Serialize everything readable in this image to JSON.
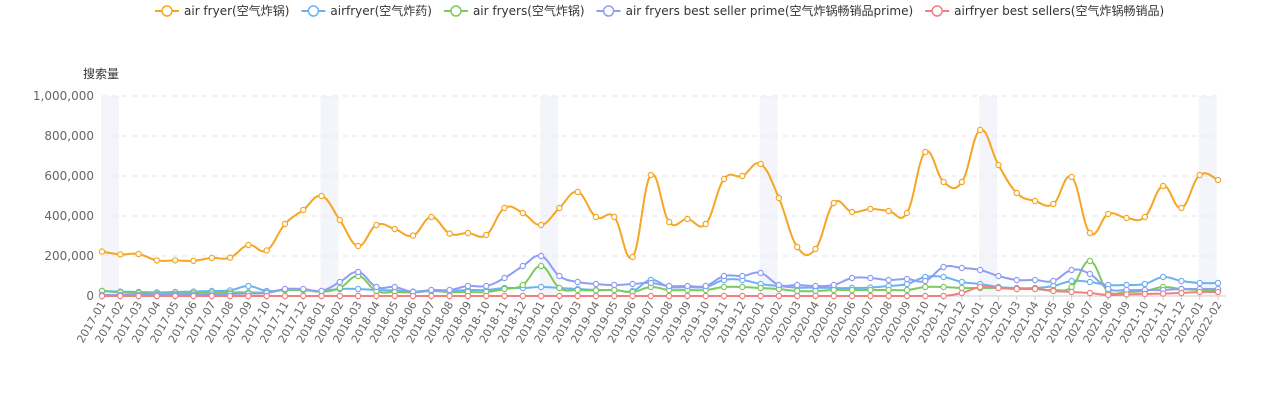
{
  "chart_data": {
    "type": "line",
    "title": "",
    "ylabel": "搜索量",
    "xlabel": "",
    "ylim": [
      0,
      1000000
    ],
    "yticks": [
      "0",
      "200,000",
      "400,000",
      "600,000",
      "800,000",
      "1,000,000"
    ],
    "ytick_values": [
      0,
      200000,
      400000,
      600000,
      800000,
      1000000
    ],
    "grid": true,
    "legend_position": "top",
    "x": [
      "2017-01",
      "2017-02",
      "2017-03",
      "2017-04",
      "2017-05",
      "2017-06",
      "2017-07",
      "2017-08",
      "2017-09",
      "2017-10",
      "2017-11",
      "2017-12",
      "2018-01",
      "2018-02",
      "2018-03",
      "2018-04",
      "2018-05",
      "2018-06",
      "2018-07",
      "2018-08",
      "2018-09",
      "2018-10",
      "2018-11",
      "2018-12",
      "2019-01",
      "2019-02",
      "2019-03",
      "2019-04",
      "2019-05",
      "2019-06",
      "2019-07",
      "2019-08",
      "2019-09",
      "2019-10",
      "2019-11",
      "2019-12",
      "2020-01",
      "2020-02",
      "2020-03",
      "2020-04",
      "2020-05",
      "2020-06",
      "2020-07",
      "2020-08",
      "2020-09",
      "2020-10",
      "2020-11",
      "2020-12",
      "2021-01",
      "2021-02",
      "2021-03",
      "2021-04",
      "2021-05",
      "2021-06",
      "2021-07",
      "2021-08",
      "2021-09",
      "2021-10",
      "2021-11",
      "2021-12",
      "2022-01",
      "2022-02"
    ],
    "highlight_bands": [
      "2017-01",
      "2018-01",
      "2019-01",
      "2020-01",
      "2021-01",
      "2022-01"
    ],
    "series": [
      {
        "name": "air fryer(空气炸锅)",
        "color": "#f5a623",
        "values": [
          222000,
          208000,
          210000,
          178000,
          178000,
          176000,
          190000,
          192000,
          255000,
          228000,
          360000,
          430000,
          500000,
          380000,
          250000,
          355000,
          335000,
          302000,
          395000,
          312000,
          315000,
          305000,
          440000,
          415000,
          355000,
          440000,
          520000,
          395000,
          395000,
          195000,
          605000,
          370000,
          385000,
          360000,
          585000,
          600000,
          660000,
          490000,
          245000,
          235000,
          465000,
          420000,
          435000,
          425000,
          415000,
          720000,
          570000,
          570000,
          830000,
          655000,
          515000,
          475000,
          460000,
          595000,
          315000,
          410000,
          390000,
          395000,
          550000,
          440000,
          605000,
          580000
        ]
      },
      {
        "name": "airfryer(空气炸药)",
        "color": "#69b3f2",
        "values": [
          25000,
          22000,
          20000,
          18000,
          20000,
          22000,
          25000,
          28000,
          50000,
          25000,
          30000,
          30000,
          25000,
          35000,
          35000,
          30000,
          28000,
          22000,
          28000,
          25000,
          30000,
          30000,
          40000,
          40000,
          45000,
          40000,
          35000,
          30000,
          30000,
          25000,
          80000,
          45000,
          45000,
          45000,
          80000,
          80000,
          60000,
          50000,
          42000,
          42000,
          40000,
          40000,
          42000,
          50000,
          60000,
          95000,
          95000,
          70000,
          60000,
          45000,
          40000,
          40000,
          50000,
          75000,
          70000,
          55000,
          55000,
          60000,
          95000,
          75000,
          65000,
          65000
        ]
      },
      {
        "name": "air fryers(空气炸锅)",
        "color": "#7bc95f",
        "values": [
          25000,
          18000,
          15000,
          12000,
          12000,
          14000,
          18000,
          18000,
          18000,
          18000,
          30000,
          30000,
          22000,
          40000,
          100000,
          25000,
          20000,
          18000,
          25000,
          20000,
          20000,
          20000,
          35000,
          55000,
          150000,
          40000,
          30000,
          28000,
          30000,
          20000,
          45000,
          30000,
          30000,
          30000,
          45000,
          45000,
          40000,
          35000,
          25000,
          25000,
          30000,
          30000,
          30000,
          30000,
          30000,
          45000,
          45000,
          40000,
          40000,
          40000,
          35000,
          35000,
          30000,
          45000,
          175000,
          20000,
          20000,
          25000,
          45000,
          35000,
          30000,
          30000
        ]
      },
      {
        "name": "air fryers best seller prime(空气炸锅畅销品prime)",
        "color": "#8f9ef5",
        "values": [
          5000,
          5000,
          5000,
          5000,
          5000,
          5000,
          8000,
          10000,
          12000,
          15000,
          35000,
          35000,
          25000,
          70000,
          120000,
          45000,
          45000,
          20000,
          30000,
          30000,
          50000,
          50000,
          90000,
          150000,
          200000,
          100000,
          70000,
          60000,
          55000,
          60000,
          65000,
          50000,
          50000,
          50000,
          100000,
          100000,
          115000,
          55000,
          55000,
          50000,
          55000,
          90000,
          90000,
          80000,
          85000,
          75000,
          145000,
          140000,
          130000,
          100000,
          80000,
          80000,
          75000,
          130000,
          110000,
          35000,
          30000,
          30000,
          30000,
          35000,
          35000,
          35000
        ]
      },
      {
        "name": "airfryer best sellers(空气炸锅畅销品)",
        "color": "#f08080",
        "values": [
          0,
          0,
          0,
          0,
          0,
          0,
          0,
          0,
          0,
          0,
          0,
          0,
          0,
          0,
          0,
          0,
          0,
          0,
          0,
          0,
          0,
          0,
          0,
          0,
          0,
          0,
          0,
          0,
          0,
          0,
          0,
          0,
          0,
          0,
          0,
          0,
          0,
          0,
          0,
          0,
          0,
          0,
          0,
          0,
          0,
          0,
          0,
          15000,
          45000,
          40000,
          35000,
          35000,
          25000,
          20000,
          15000,
          5000,
          8000,
          10000,
          12000,
          15000,
          20000,
          20000
        ]
      }
    ]
  }
}
